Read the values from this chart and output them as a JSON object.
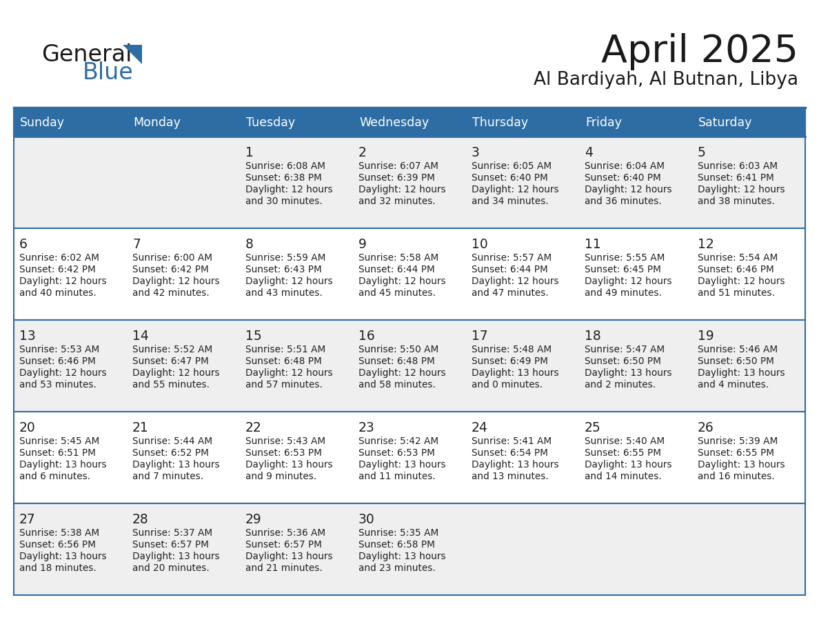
{
  "title": "April 2025",
  "subtitle": "Al Bardiyah, Al Butnan, Libya",
  "header_bg": "#2E6DA4",
  "header_text_color": "#FFFFFF",
  "cell_bg_odd": "#EFEFEF",
  "cell_bg_even": "#FFFFFF",
  "border_color": "#2E6DA4",
  "day_names": [
    "Sunday",
    "Monday",
    "Tuesday",
    "Wednesday",
    "Thursday",
    "Friday",
    "Saturday"
  ],
  "days": [
    {
      "day": 1,
      "col": 2,
      "row": 0,
      "sunrise": "6:08 AM",
      "sunset": "6:38 PM",
      "dl_hours": "12 hours",
      "dl_mins": "and 30 minutes."
    },
    {
      "day": 2,
      "col": 3,
      "row": 0,
      "sunrise": "6:07 AM",
      "sunset": "6:39 PM",
      "dl_hours": "12 hours",
      "dl_mins": "and 32 minutes."
    },
    {
      "day": 3,
      "col": 4,
      "row": 0,
      "sunrise": "6:05 AM",
      "sunset": "6:40 PM",
      "dl_hours": "12 hours",
      "dl_mins": "and 34 minutes."
    },
    {
      "day": 4,
      "col": 5,
      "row": 0,
      "sunrise": "6:04 AM",
      "sunset": "6:40 PM",
      "dl_hours": "12 hours",
      "dl_mins": "and 36 minutes."
    },
    {
      "day": 5,
      "col": 6,
      "row": 0,
      "sunrise": "6:03 AM",
      "sunset": "6:41 PM",
      "dl_hours": "12 hours",
      "dl_mins": "and 38 minutes."
    },
    {
      "day": 6,
      "col": 0,
      "row": 1,
      "sunrise": "6:02 AM",
      "sunset": "6:42 PM",
      "dl_hours": "12 hours",
      "dl_mins": "and 40 minutes."
    },
    {
      "day": 7,
      "col": 1,
      "row": 1,
      "sunrise": "6:00 AM",
      "sunset": "6:42 PM",
      "dl_hours": "12 hours",
      "dl_mins": "and 42 minutes."
    },
    {
      "day": 8,
      "col": 2,
      "row": 1,
      "sunrise": "5:59 AM",
      "sunset": "6:43 PM",
      "dl_hours": "12 hours",
      "dl_mins": "and 43 minutes."
    },
    {
      "day": 9,
      "col": 3,
      "row": 1,
      "sunrise": "5:58 AM",
      "sunset": "6:44 PM",
      "dl_hours": "12 hours",
      "dl_mins": "and 45 minutes."
    },
    {
      "day": 10,
      "col": 4,
      "row": 1,
      "sunrise": "5:57 AM",
      "sunset": "6:44 PM",
      "dl_hours": "12 hours",
      "dl_mins": "and 47 minutes."
    },
    {
      "day": 11,
      "col": 5,
      "row": 1,
      "sunrise": "5:55 AM",
      "sunset": "6:45 PM",
      "dl_hours": "12 hours",
      "dl_mins": "and 49 minutes."
    },
    {
      "day": 12,
      "col": 6,
      "row": 1,
      "sunrise": "5:54 AM",
      "sunset": "6:46 PM",
      "dl_hours": "12 hours",
      "dl_mins": "and 51 minutes."
    },
    {
      "day": 13,
      "col": 0,
      "row": 2,
      "sunrise": "5:53 AM",
      "sunset": "6:46 PM",
      "dl_hours": "12 hours",
      "dl_mins": "and 53 minutes."
    },
    {
      "day": 14,
      "col": 1,
      "row": 2,
      "sunrise": "5:52 AM",
      "sunset": "6:47 PM",
      "dl_hours": "12 hours",
      "dl_mins": "and 55 minutes."
    },
    {
      "day": 15,
      "col": 2,
      "row": 2,
      "sunrise": "5:51 AM",
      "sunset": "6:48 PM",
      "dl_hours": "12 hours",
      "dl_mins": "and 57 minutes."
    },
    {
      "day": 16,
      "col": 3,
      "row": 2,
      "sunrise": "5:50 AM",
      "sunset": "6:48 PM",
      "dl_hours": "12 hours",
      "dl_mins": "and 58 minutes."
    },
    {
      "day": 17,
      "col": 4,
      "row": 2,
      "sunrise": "5:48 AM",
      "sunset": "6:49 PM",
      "dl_hours": "13 hours",
      "dl_mins": "and 0 minutes."
    },
    {
      "day": 18,
      "col": 5,
      "row": 2,
      "sunrise": "5:47 AM",
      "sunset": "6:50 PM",
      "dl_hours": "13 hours",
      "dl_mins": "and 2 minutes."
    },
    {
      "day": 19,
      "col": 6,
      "row": 2,
      "sunrise": "5:46 AM",
      "sunset": "6:50 PM",
      "dl_hours": "13 hours",
      "dl_mins": "and 4 minutes."
    },
    {
      "day": 20,
      "col": 0,
      "row": 3,
      "sunrise": "5:45 AM",
      "sunset": "6:51 PM",
      "dl_hours": "13 hours",
      "dl_mins": "and 6 minutes."
    },
    {
      "day": 21,
      "col": 1,
      "row": 3,
      "sunrise": "5:44 AM",
      "sunset": "6:52 PM",
      "dl_hours": "13 hours",
      "dl_mins": "and 7 minutes."
    },
    {
      "day": 22,
      "col": 2,
      "row": 3,
      "sunrise": "5:43 AM",
      "sunset": "6:53 PM",
      "dl_hours": "13 hours",
      "dl_mins": "and 9 minutes."
    },
    {
      "day": 23,
      "col": 3,
      "row": 3,
      "sunrise": "5:42 AM",
      "sunset": "6:53 PM",
      "dl_hours": "13 hours",
      "dl_mins": "and 11 minutes."
    },
    {
      "day": 24,
      "col": 4,
      "row": 3,
      "sunrise": "5:41 AM",
      "sunset": "6:54 PM",
      "dl_hours": "13 hours",
      "dl_mins": "and 13 minutes."
    },
    {
      "day": 25,
      "col": 5,
      "row": 3,
      "sunrise": "5:40 AM",
      "sunset": "6:55 PM",
      "dl_hours": "13 hours",
      "dl_mins": "and 14 minutes."
    },
    {
      "day": 26,
      "col": 6,
      "row": 3,
      "sunrise": "5:39 AM",
      "sunset": "6:55 PM",
      "dl_hours": "13 hours",
      "dl_mins": "and 16 minutes."
    },
    {
      "day": 27,
      "col": 0,
      "row": 4,
      "sunrise": "5:38 AM",
      "sunset": "6:56 PM",
      "dl_hours": "13 hours",
      "dl_mins": "and 18 minutes."
    },
    {
      "day": 28,
      "col": 1,
      "row": 4,
      "sunrise": "5:37 AM",
      "sunset": "6:57 PM",
      "dl_hours": "13 hours",
      "dl_mins": "and 20 minutes."
    },
    {
      "day": 29,
      "col": 2,
      "row": 4,
      "sunrise": "5:36 AM",
      "sunset": "6:57 PM",
      "dl_hours": "13 hours",
      "dl_mins": "and 21 minutes."
    },
    {
      "day": 30,
      "col": 3,
      "row": 4,
      "sunrise": "5:35 AM",
      "sunset": "6:58 PM",
      "dl_hours": "13 hours",
      "dl_mins": "and 23 minutes."
    }
  ]
}
